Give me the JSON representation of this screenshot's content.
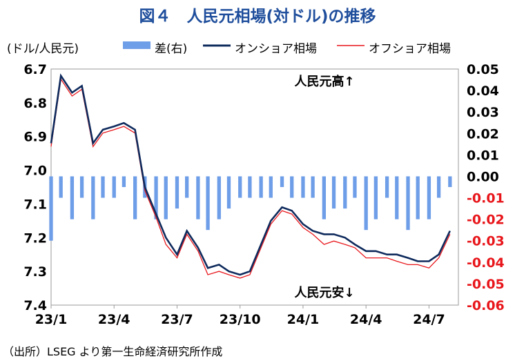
{
  "title": "図４　人民元相場(対ドル)の推移",
  "source": "（出所）LSEG より第一生命経済研究所作成",
  "colors": {
    "title": "#1f4e9c",
    "spread": "#6f9ee8",
    "onshore": "#0e2a5c",
    "offshore": "#e8161b",
    "negative_tick": "#e8161b"
  },
  "chart_data": {
    "type": "line",
    "y_left_label": "(ドル/人民元)",
    "y_left_inverted": true,
    "ylim_left": [
      6.7,
      7.4
    ],
    "yticks_left": [
      "6.7",
      "6.8",
      "6.9",
      "7.0",
      "7.1",
      "7.2",
      "7.3",
      "7.4"
    ],
    "ylim_right": [
      -0.06,
      0.05
    ],
    "yticks_right": [
      "0.05",
      "0.04",
      "0.03",
      "0.02",
      "0.01",
      "0.00",
      "-0.01",
      "-0.02",
      "-0.03",
      "-0.04",
      "-0.05",
      "-0.06"
    ],
    "x_ticks": [
      "23/1",
      "23/4",
      "23/7",
      "23/10",
      "24/1",
      "24/4",
      "24/7"
    ],
    "legend": [
      "差(右)",
      "オンショア相場",
      "オフショア相場"
    ],
    "annotations": {
      "top": "人民元高↑",
      "bottom": "人民元安↓"
    },
    "x": [
      "2023-01",
      "2023-01-15",
      "2023-02",
      "2023-02-15",
      "2023-03",
      "2023-03-15",
      "2023-04",
      "2023-04-15",
      "2023-05",
      "2023-05-15",
      "2023-06",
      "2023-06-15",
      "2023-07",
      "2023-07-15",
      "2023-08",
      "2023-08-15",
      "2023-09",
      "2023-09-15",
      "2023-10",
      "2023-10-15",
      "2023-11",
      "2023-11-15",
      "2023-12",
      "2023-12-15",
      "2024-01",
      "2024-01-15",
      "2024-02",
      "2024-02-15",
      "2024-03",
      "2024-03-15",
      "2024-04",
      "2024-04-15",
      "2024-05",
      "2024-05-15",
      "2024-06",
      "2024-06-15",
      "2024-07",
      "2024-07-15",
      "2024-08"
    ],
    "series": [
      {
        "name": "オンショア相場",
        "values": [
          6.92,
          6.72,
          6.77,
          6.75,
          6.92,
          6.88,
          6.87,
          6.86,
          6.88,
          7.05,
          7.13,
          7.2,
          7.25,
          7.18,
          7.23,
          7.29,
          7.28,
          7.3,
          7.31,
          7.3,
          7.22,
          7.15,
          7.11,
          7.12,
          7.16,
          7.18,
          7.19,
          7.19,
          7.2,
          7.22,
          7.24,
          7.24,
          7.25,
          7.25,
          7.26,
          7.27,
          7.27,
          7.25,
          7.18
        ]
      },
      {
        "name": "オフショア相場",
        "values": [
          6.93,
          6.73,
          6.78,
          6.76,
          6.93,
          6.89,
          6.88,
          6.87,
          6.89,
          7.06,
          7.14,
          7.22,
          7.26,
          7.19,
          7.24,
          7.31,
          7.3,
          7.31,
          7.32,
          7.31,
          7.23,
          7.16,
          7.12,
          7.13,
          7.17,
          7.19,
          7.22,
          7.21,
          7.22,
          7.23,
          7.26,
          7.26,
          7.26,
          7.27,
          7.28,
          7.28,
          7.29,
          7.26,
          7.19
        ]
      },
      {
        "name": "差(右)",
        "values": [
          -0.03,
          -0.01,
          -0.02,
          -0.01,
          -0.02,
          -0.01,
          -0.01,
          -0.005,
          -0.02,
          -0.01,
          -0.02,
          -0.02,
          -0.015,
          -0.01,
          -0.02,
          -0.025,
          -0.02,
          -0.015,
          -0.01,
          -0.01,
          -0.01,
          -0.01,
          -0.005,
          -0.01,
          -0.01,
          -0.01,
          -0.02,
          -0.015,
          -0.015,
          -0.01,
          -0.025,
          -0.02,
          -0.01,
          -0.02,
          -0.025,
          -0.02,
          -0.02,
          -0.01,
          -0.005
        ]
      }
    ]
  }
}
